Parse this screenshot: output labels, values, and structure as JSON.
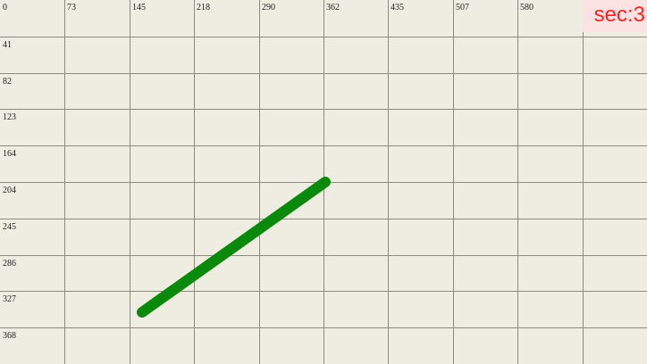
{
  "grid": {
    "x_ticks": [
      "0",
      "73",
      "145",
      "218",
      "290",
      "362",
      "435",
      "507",
      "580"
    ],
    "y_ticks": [
      "41",
      "82",
      "123",
      "164",
      "204",
      "245",
      "286",
      "327",
      "368"
    ],
    "line_color": "#8a8a80",
    "background": "#efede2"
  },
  "drawn_segment": {
    "color": "#0a8a0a",
    "from": [
      159,
      350
    ],
    "to": [
      364,
      204
    ]
  },
  "timer": {
    "label": "sec:3",
    "color": "#ff2020"
  }
}
